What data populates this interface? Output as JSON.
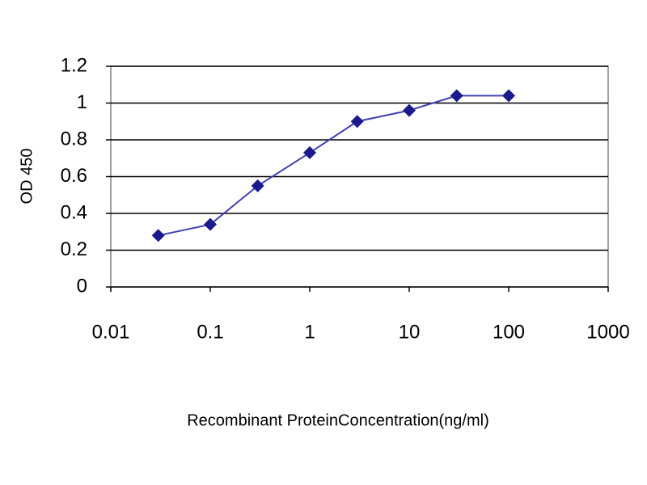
{
  "chart_data": {
    "type": "line",
    "x": [
      0.03,
      0.1,
      0.3,
      1,
      3,
      10,
      30,
      100
    ],
    "values": [
      0.28,
      0.34,
      0.55,
      0.73,
      0.9,
      0.96,
      1.04,
      1.04
    ],
    "color": "#1a1a8c",
    "x_label": "Recombinant ProteinConcentration(ng/ml)",
    "y_label": "OD 450",
    "xscale": "log",
    "xlim": [
      0.01,
      1000
    ],
    "xticks": [
      0.01,
      0.1,
      1,
      10,
      100,
      1000
    ],
    "ylim": [
      0,
      1.2
    ],
    "yticks": [
      0,
      0.2,
      0.4,
      0.6,
      0.8,
      1,
      1.2
    ],
    "grid": true
  }
}
